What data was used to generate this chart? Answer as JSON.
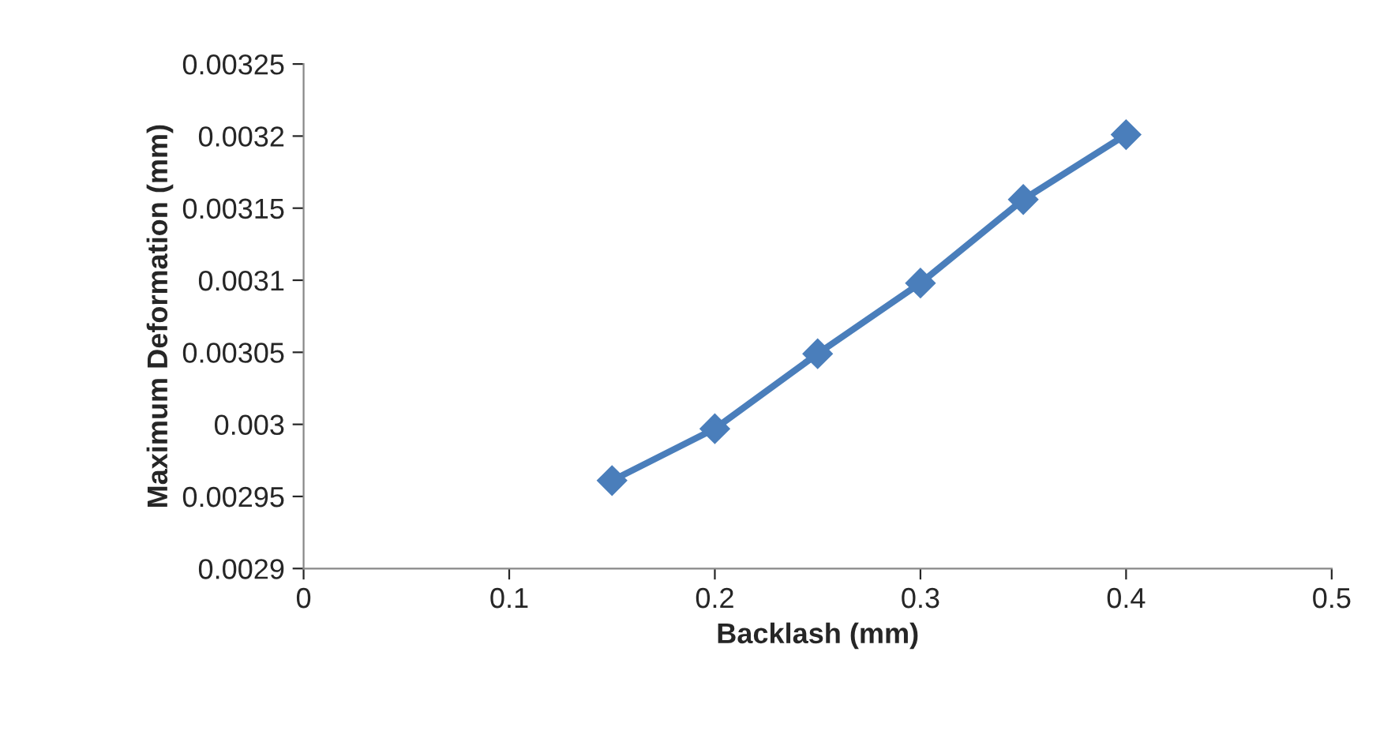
{
  "chart_data": {
    "type": "line",
    "xlabel": "Backlash (mm)",
    "ylabel": "Maximum Deformation (mm)",
    "x": [
      0.15,
      0.2,
      0.25,
      0.3,
      0.35,
      0.4
    ],
    "series": [
      {
        "color": "#4a7ebb",
        "values": [
          0.002961,
          0.002997,
          0.003049,
          0.003098,
          0.003156,
          0.003201
        ]
      }
    ],
    "xlim": [
      0,
      0.5
    ],
    "xticks": [
      0,
      0.1,
      0.2,
      0.3,
      0.4,
      0.5
    ],
    "ylim": [
      0.0029,
      0.00325
    ],
    "yticks": [
      0.0029,
      0.00295,
      0.003,
      0.00305,
      0.0031,
      0.00315,
      0.0032,
      0.00325
    ],
    "grid": false,
    "legend": false,
    "marker": "diamond",
    "line_style": "solid"
  }
}
